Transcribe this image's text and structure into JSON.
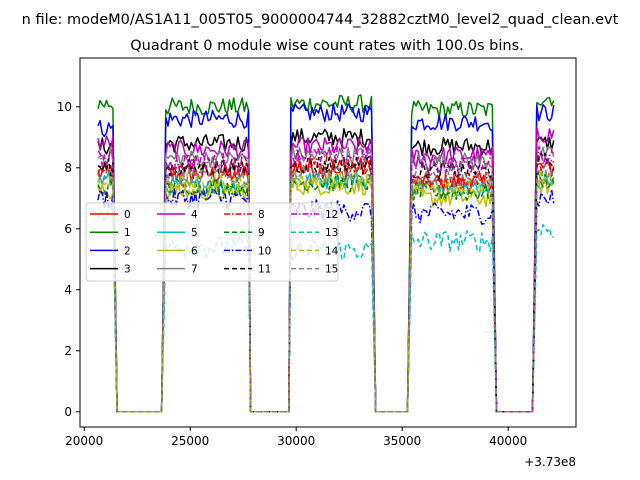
{
  "figure": {
    "suptitle": "n file: modeM0/AS1A11_005T05_9000004744_32882cztM0_level2_quad_clean.evt"
  },
  "chart_data": {
    "type": "line",
    "title": "Quadrant 0 module wise count rates with 100.0s bins.",
    "xlabel": "",
    "ylabel": "",
    "x_offset_text": "+3.73e8",
    "xlim": [
      19800,
      43200
    ],
    "ylim": [
      -0.5,
      11.6
    ],
    "xticks": [
      20000,
      25000,
      30000,
      35000,
      40000
    ],
    "xtick_labels": [
      "20000",
      "25000",
      "30000",
      "35000",
      "40000"
    ],
    "yticks": [
      0,
      2,
      4,
      6,
      8,
      10
    ],
    "ytick_labels": [
      "0",
      "2",
      "4",
      "6",
      "8",
      "10"
    ],
    "legend": {
      "position": "center-left",
      "ncol": 4,
      "entries": [
        {
          "label": "0",
          "color": "#ff0000",
          "style": "solid"
        },
        {
          "label": "1",
          "color": "#008000",
          "style": "solid"
        },
        {
          "label": "2",
          "color": "#0000ff",
          "style": "solid"
        },
        {
          "label": "3",
          "color": "#000000",
          "style": "solid"
        },
        {
          "label": "4",
          "color": "#bf00bf",
          "style": "solid"
        },
        {
          "label": "5",
          "color": "#00bfbf",
          "style": "solid"
        },
        {
          "label": "6",
          "color": "#bfbf00",
          "style": "solid"
        },
        {
          "label": "7",
          "color": "#808080",
          "style": "solid"
        },
        {
          "label": "8",
          "color": "#ff0000",
          "style": "dashdot"
        },
        {
          "label": "9",
          "color": "#008000",
          "style": "dashed"
        },
        {
          "label": "10",
          "color": "#0000ff",
          "style": "dashdot"
        },
        {
          "label": "11",
          "color": "#000000",
          "style": "dashed"
        },
        {
          "label": "12",
          "color": "#bf00bf",
          "style": "dashdot"
        },
        {
          "label": "13",
          "color": "#00bfbf",
          "style": "dashed"
        },
        {
          "label": "14",
          "color": "#bfbf00",
          "style": "dashed"
        },
        {
          "label": "15",
          "color": "#808080",
          "style": "dashed"
        }
      ]
    },
    "segments": [
      {
        "start": 20650,
        "end": 21350
      },
      {
        "start": 23800,
        "end": 27750
      },
      {
        "start": 29750,
        "end": 33600
      },
      {
        "start": 35400,
        "end": 39300
      },
      {
        "start": 41300,
        "end": 42150
      }
    ],
    "gaps": [
      {
        "start": 21500,
        "end": 23700
      },
      {
        "start": 27850,
        "end": 29650
      },
      {
        "start": 33750,
        "end": 35300
      },
      {
        "start": 39450,
        "end": 41200
      }
    ],
    "series_levels": [
      {
        "name": "0",
        "seg_levels": [
          7.8,
          7.8,
          8.0,
          7.5,
          8.0
        ],
        "noise": 0.35
      },
      {
        "name": "1",
        "seg_levels": [
          10.1,
          10.0,
          10.1,
          9.9,
          10.3
        ],
        "noise": 0.3
      },
      {
        "name": "2",
        "seg_levels": [
          9.3,
          9.6,
          9.8,
          9.5,
          9.8
        ],
        "noise": 0.3
      },
      {
        "name": "3",
        "seg_levels": [
          8.7,
          8.8,
          9.0,
          8.7,
          8.8
        ],
        "noise": 0.3
      },
      {
        "name": "4",
        "seg_levels": [
          8.8,
          8.6,
          8.7,
          8.4,
          9.1
        ],
        "noise": 0.3
      },
      {
        "name": "5",
        "seg_levels": [
          7.6,
          7.4,
          7.6,
          7.4,
          7.6
        ],
        "noise": 0.3
      },
      {
        "name": "6",
        "seg_levels": [
          7.2,
          7.2,
          7.4,
          7.0,
          7.4
        ],
        "noise": 0.3
      },
      {
        "name": "7",
        "seg_levels": [
          8.4,
          8.3,
          8.4,
          8.2,
          8.4
        ],
        "noise": 0.3
      },
      {
        "name": "8",
        "seg_levels": [
          7.9,
          7.9,
          8.1,
          7.6,
          8.1
        ],
        "noise": 0.3
      },
      {
        "name": "9",
        "seg_levels": [
          7.3,
          7.4,
          7.5,
          7.2,
          7.6
        ],
        "noise": 0.3
      },
      {
        "name": "10",
        "seg_levels": [
          7.0,
          7.0,
          6.6,
          6.5,
          7.0
        ],
        "noise": 0.35
      },
      {
        "name": "11",
        "seg_levels": [
          8.0,
          8.0,
          8.1,
          7.9,
          8.2
        ],
        "noise": 0.3
      },
      {
        "name": "12",
        "seg_levels": [
          8.3,
          8.2,
          8.4,
          8.1,
          8.4
        ],
        "noise": 0.3
      },
      {
        "name": "13",
        "seg_levels": [
          6.6,
          5.4,
          5.3,
          5.6,
          6.0
        ],
        "noise": 0.35
      },
      {
        "name": "14",
        "seg_levels": [
          7.5,
          7.5,
          7.6,
          7.4,
          7.7
        ],
        "noise": 0.3
      },
      {
        "name": "15",
        "seg_levels": [
          7.7,
          7.7,
          7.8,
          7.6,
          7.8
        ],
        "noise": 0.3
      }
    ],
    "bin_width": 100,
    "gap_value": 0
  }
}
